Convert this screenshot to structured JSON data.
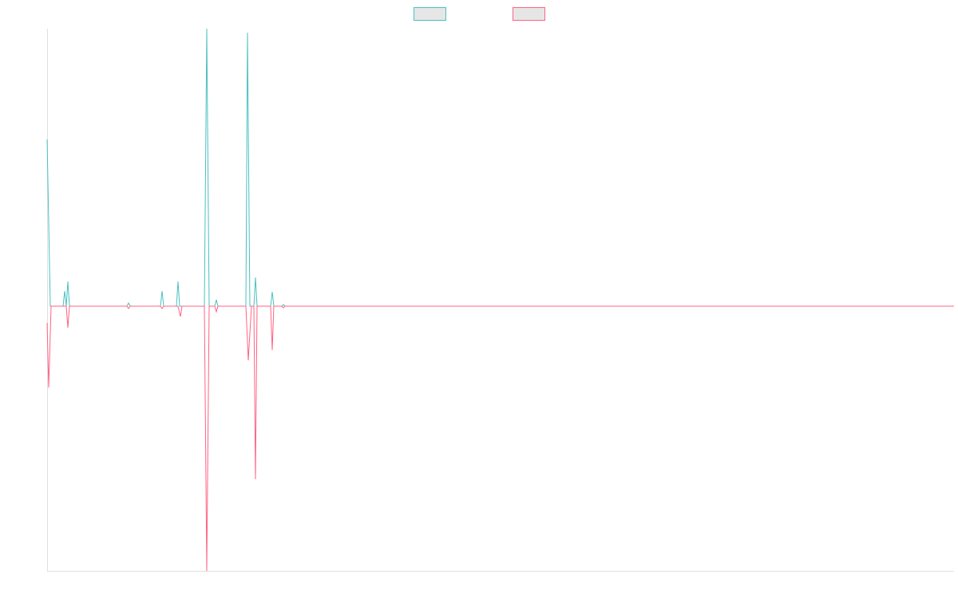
{
  "chart_data": {
    "type": "line",
    "x": [
      0,
      2,
      4,
      5,
      20,
      22,
      24,
      26,
      28,
      100,
      102,
      104,
      142,
      144,
      146,
      162,
      164,
      166,
      167,
      169,
      197,
      200,
      203,
      210,
      212,
      214,
      249,
      251,
      252,
      254,
      256,
      259,
      261,
      263,
      280,
      282,
      284,
      294,
      296,
      298,
      1136
    ],
    "series": [
      {
        "color": "#4bc0c0",
        "values": [
          20.9,
          10.4,
          0,
          0,
          0,
          1.9,
          0,
          3.1,
          0,
          0,
          0.4,
          0,
          0,
          1.9,
          0,
          0,
          3.1,
          0,
          0,
          0,
          0,
          34.8,
          0,
          0,
          0.8,
          0,
          0,
          34.3,
          22.9,
          0,
          0,
          0,
          3.6,
          0,
          0,
          1.8,
          0,
          0,
          0.2,
          0,
          0
        ]
      },
      {
        "color": "#ff6384",
        "values": [
          -2.1,
          -10.2,
          -3.4,
          0,
          0,
          0,
          0,
          -2.7,
          0,
          0,
          -0.3,
          0,
          0,
          -0.3,
          0,
          0,
          0,
          -0.9,
          -1.3,
          0,
          0,
          -33.2,
          0,
          0,
          -0.7,
          0,
          0,
          -4.5,
          -6.8,
          -3.4,
          0,
          0,
          -21.7,
          0,
          0,
          -5.5,
          0,
          0,
          -0.2,
          0,
          0
        ]
      }
    ],
    "xlim": [
      0,
      1136
    ],
    "ylim": [
      -33.2,
      34.8
    ],
    "legend": "top"
  }
}
